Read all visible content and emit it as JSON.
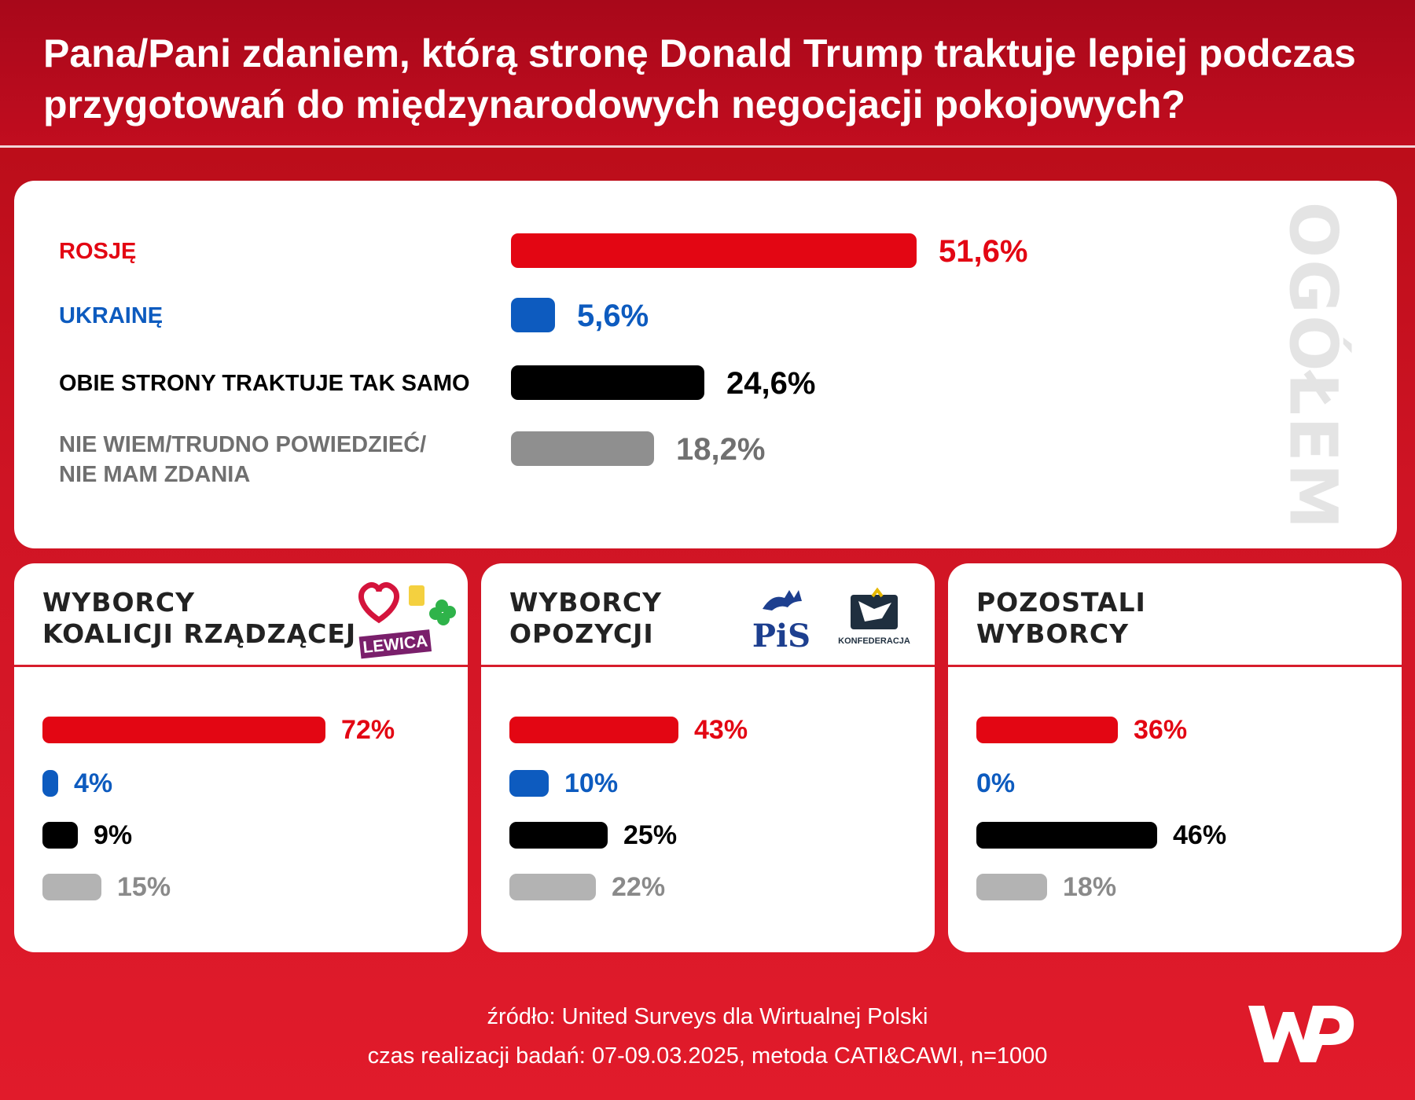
{
  "header": {
    "title": "Pana/Pani zdaniem, którą stronę Donald Trump traktuje lepiej podczas przygotowań do międzynarodowych negocjacji pokojowych?"
  },
  "main_panel": {
    "vertical_label": "OGÓŁEM",
    "categories": [
      {
        "key": "rosje",
        "label_lines": [
          "ROSJĘ"
        ],
        "value": 51.6,
        "display": "51,6%",
        "color": "#e30613"
      },
      {
        "key": "ukraine",
        "label_lines": [
          "UKRAINĘ"
        ],
        "value": 5.6,
        "display": "5,6%",
        "color": "#0d5bbf"
      },
      {
        "key": "obie",
        "label_lines": [
          "OBIE STRONY TRAKTUJE TAK SAMO"
        ],
        "value": 24.6,
        "display": "24,6%",
        "color": "#000000"
      },
      {
        "key": "niewiem",
        "label_lines": [
          "NIE WIEM/TRUDNO POWIEDZIEĆ/",
          "NIE MAM ZDANIA"
        ],
        "value": 18.2,
        "display": "18,2%",
        "color": "#8f8f8f"
      }
    ]
  },
  "groups": [
    {
      "key": "koalicja",
      "title_lines": [
        "WYBORCY",
        "KOALICJI RZĄDZĄCEJ"
      ],
      "logo_text": "LEWICA",
      "values": [
        72,
        4,
        9,
        15
      ],
      "displays": [
        "72%",
        "4%",
        "9%",
        "15%"
      ]
    },
    {
      "key": "opozycja",
      "title_lines": [
        "WYBORCY",
        "OPOZYCJI"
      ],
      "logo_text": "PiS",
      "logo_text_2": "KONFEDERACJA",
      "values": [
        43,
        10,
        25,
        22
      ],
      "displays": [
        "43%",
        "10%",
        "25%",
        "22%"
      ]
    },
    {
      "key": "pozostali",
      "title_lines": [
        "POZOSTALI",
        "WYBORCY"
      ],
      "values": [
        36,
        0,
        46,
        18
      ],
      "displays": [
        "36%",
        "0%",
        "46%",
        "18%"
      ]
    }
  ],
  "group_colors": [
    "#e30613",
    "#0d5bbf",
    "#000000",
    "#b3b3b3"
  ],
  "group_text_colors": [
    "#e30613",
    "#0d5bbf",
    "#000000",
    "#8a8a8a"
  ],
  "main_text_colors": [
    "#e30613",
    "#0d5bbf",
    "#000000",
    "#707070"
  ],
  "footer": {
    "source": "źródło: United Surveys dla Wirtualnej Polski",
    "details": "czas realizacji badań: 07-09.03.2025, metoda CATI&CAWI, n=1000"
  },
  "chart_data": [
    {
      "type": "bar",
      "title": "OGÓŁEM",
      "categories": [
        "ROSJĘ",
        "UKRAINĘ",
        "OBIE STRONY TRAKTUJE TAK SAMO",
        "NIE WIEM/TRUDNO POWIEDZIEĆ/ NIE MAM ZDANIA"
      ],
      "values": [
        51.6,
        5.6,
        24.6,
        18.2
      ]
    },
    {
      "type": "bar",
      "title": "WYBORCY KOALICJI RZĄDZĄCEJ",
      "categories": [
        "ROSJĘ",
        "UKRAINĘ",
        "OBIE STRONY TRAKTUJE TAK SAMO",
        "NIE WIEM/TRUDNO POWIEDZIEĆ/ NIE MAM ZDANIA"
      ],
      "values": [
        72,
        4,
        9,
        15
      ]
    },
    {
      "type": "bar",
      "title": "WYBORCY OPOZYCJI",
      "categories": [
        "ROSJĘ",
        "UKRAINĘ",
        "OBIE STRONY TRAKTUJE TAK SAMO",
        "NIE WIEM/TRUDNO POWIEDZIEĆ/ NIE MAM ZDANIA"
      ],
      "values": [
        43,
        10,
        25,
        22
      ]
    },
    {
      "type": "bar",
      "title": "POZOSTALI WYBORCY",
      "categories": [
        "ROSJĘ",
        "UKRAINĘ",
        "OBIE STRONY TRAKTUJE TAK SAMO",
        "NIE WIEM/TRUDNO POWIEDZIEĆ/ NIE MAM ZDANIA"
      ],
      "values": [
        36,
        0,
        46,
        18
      ]
    }
  ]
}
